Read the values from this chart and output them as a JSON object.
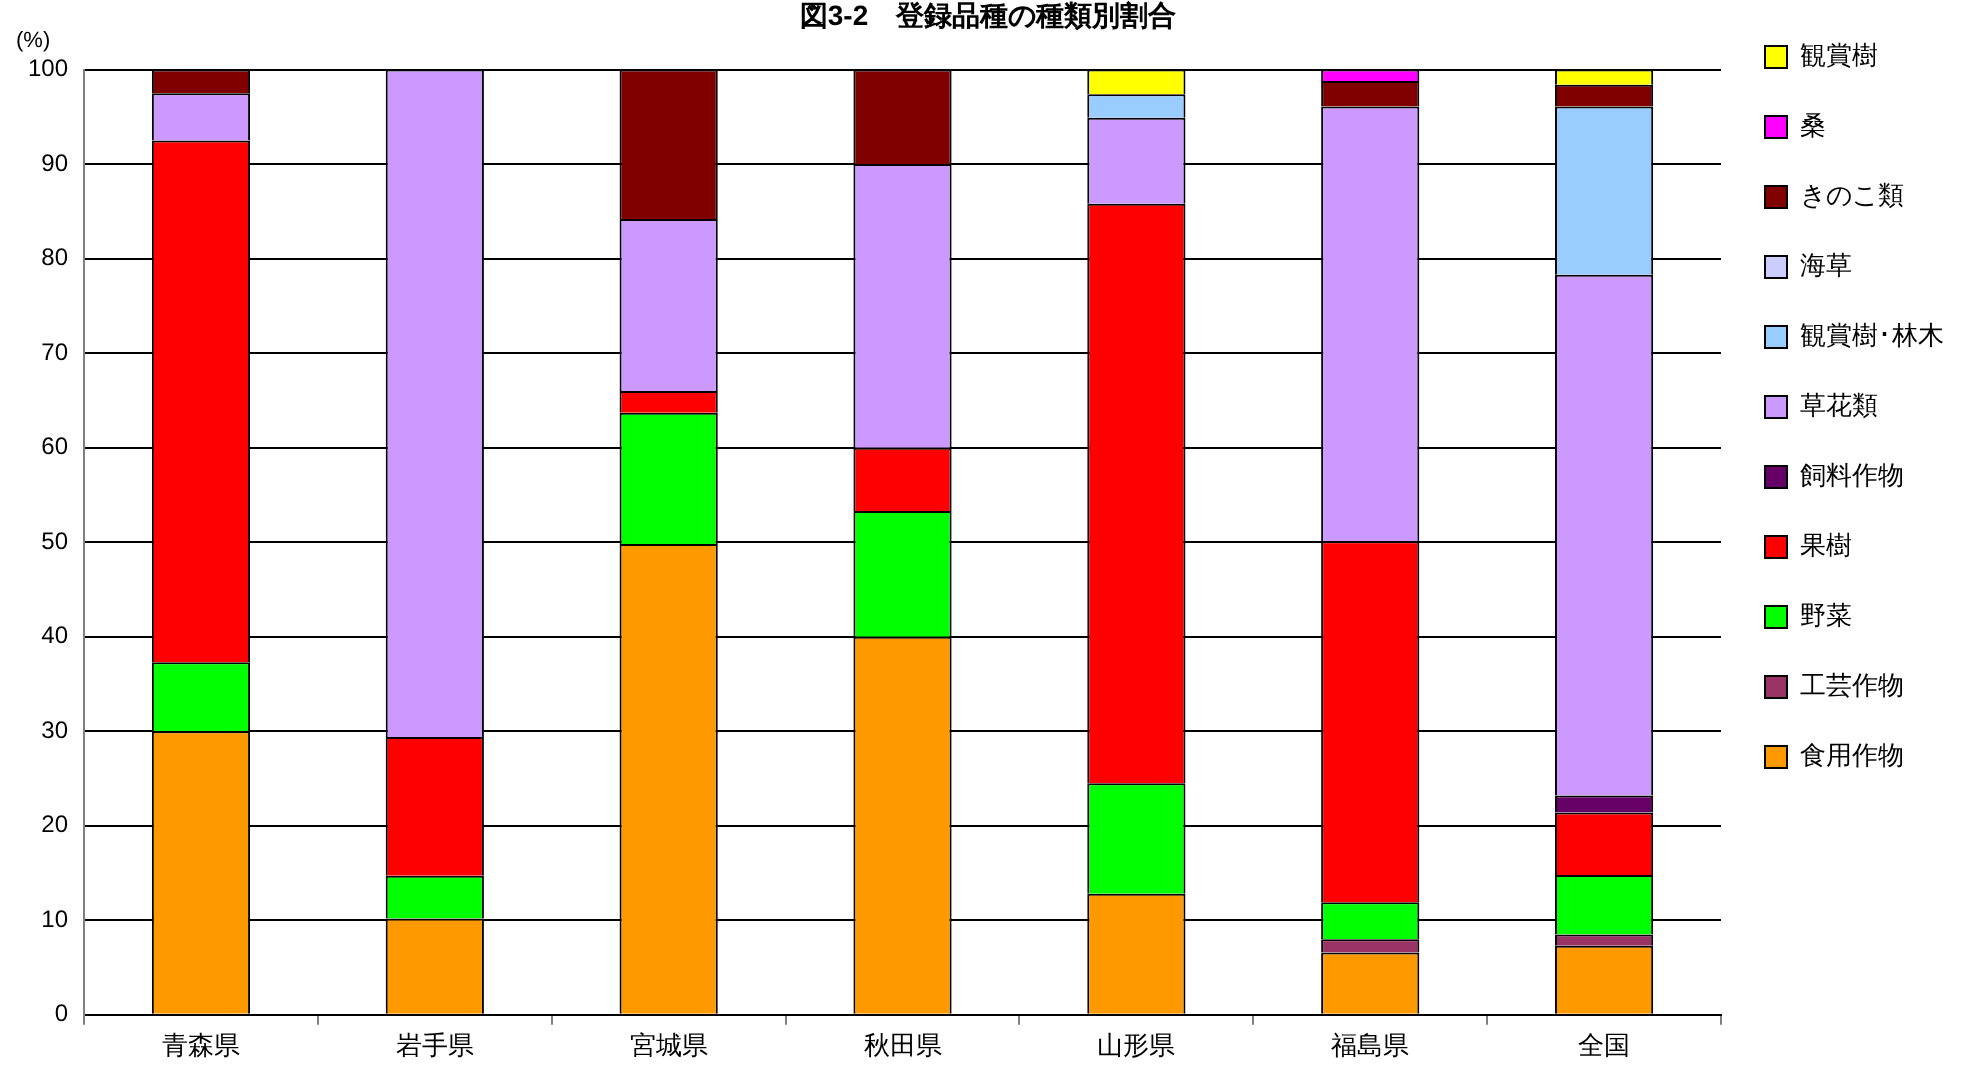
{
  "chart_data": {
    "type": "bar",
    "stacked": true,
    "title": "図3-2　登録品種の種類別割合",
    "ylabel": "(%)",
    "categories": [
      "青森県",
      "岩手県",
      "宮城県",
      "秋田県",
      "山形県",
      "福島県",
      "全国"
    ],
    "series": [
      {
        "name": "食用作物",
        "color": "#ff9900",
        "values": [
          30,
          10.2,
          49.8,
          40,
          12.8,
          6.6,
          7.3
        ]
      },
      {
        "name": "工芸作物",
        "color": "#993366",
        "values": [
          null,
          null,
          null,
          null,
          null,
          1.4,
          1.2
        ]
      },
      {
        "name": "野菜",
        "color": "#00ff00",
        "values": [
          7.3,
          4.5,
          13.9,
          13.3,
          11.7,
          3.9,
          6.3
        ]
      },
      {
        "name": "果樹",
        "color": "#ff0000",
        "values": [
          55.2,
          14.7,
          2.3,
          6.7,
          61.3,
          38.2,
          6.6
        ]
      },
      {
        "name": "飼料作物",
        "color": "#660066",
        "values": [
          null,
          null,
          null,
          null,
          null,
          null,
          1.8
        ]
      },
      {
        "name": "草花類",
        "color": "#cc99ff",
        "values": [
          5,
          70.6,
          18.2,
          30,
          9.1,
          46.0,
          55.1
        ]
      },
      {
        "name": "観賞樹･林木",
        "color": "#99ccff",
        "values": [
          null,
          null,
          null,
          null,
          2.5,
          null,
          17.8
        ]
      },
      {
        "name": "海草",
        "color": "#ccccff",
        "values": [
          null,
          null,
          null,
          null,
          null,
          null,
          null
        ]
      },
      {
        "name": "きのこ類",
        "color": "#800000",
        "values": [
          2.5,
          null,
          15.8,
          10,
          null,
          2.7,
          2.3
        ]
      },
      {
        "name": "桑",
        "color": "#ff00ff",
        "values": [
          null,
          null,
          null,
          null,
          null,
          1.2,
          null
        ]
      },
      {
        "name": "観賞樹",
        "color": "#ffff00",
        "values": [
          null,
          null,
          null,
          null,
          2.6,
          null,
          1.6
        ]
      }
    ],
    "ylim": [
      0,
      100
    ],
    "yticks": [
      0,
      10,
      20,
      30,
      40,
      50,
      60,
      70,
      80,
      90,
      100
    ],
    "grid": "y",
    "legend": "right"
  }
}
